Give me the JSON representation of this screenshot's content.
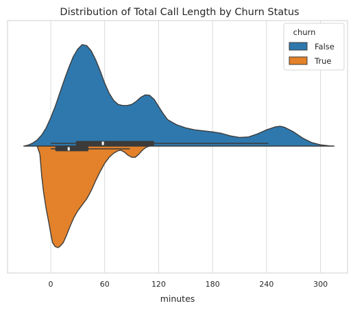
{
  "chart_data": {
    "type": "violin",
    "title": "Distribution of Total Call Length by Churn Status",
    "xlabel": "minutes",
    "ylabel": "",
    "xlim": [
      -48,
      330
    ],
    "xticks": [
      0,
      60,
      120,
      180,
      240,
      300
    ],
    "grid": "vertical",
    "split": true,
    "legend": {
      "title": "churn",
      "placement": "top-right",
      "entries": [
        {
          "label": "False",
          "color": "#2f78ad"
        },
        {
          "label": "True",
          "color": "#e3822a"
        }
      ]
    },
    "series": [
      {
        "name": "False",
        "color": "#2f78ad",
        "side": "upper",
        "density_profile": [
          [
            -30,
            0.0
          ],
          [
            -25,
            0.01
          ],
          [
            -20,
            0.03
          ],
          [
            -15,
            0.06
          ],
          [
            -10,
            0.11
          ],
          [
            -5,
            0.18
          ],
          [
            0,
            0.28
          ],
          [
            5,
            0.39
          ],
          [
            10,
            0.52
          ],
          [
            15,
            0.65
          ],
          [
            20,
            0.77
          ],
          [
            25,
            0.88
          ],
          [
            30,
            0.955
          ],
          [
            35,
            1.0
          ],
          [
            40,
            0.99
          ],
          [
            45,
            0.94
          ],
          [
            50,
            0.85
          ],
          [
            55,
            0.74
          ],
          [
            60,
            0.62
          ],
          [
            65,
            0.52
          ],
          [
            70,
            0.45
          ],
          [
            75,
            0.41
          ],
          [
            80,
            0.4
          ],
          [
            85,
            0.4
          ],
          [
            90,
            0.41
          ],
          [
            95,
            0.44
          ],
          [
            100,
            0.48
          ],
          [
            105,
            0.505
          ],
          [
            110,
            0.5
          ],
          [
            115,
            0.46
          ],
          [
            120,
            0.39
          ],
          [
            125,
            0.32
          ],
          [
            130,
            0.26
          ],
          [
            140,
            0.21
          ],
          [
            150,
            0.18
          ],
          [
            160,
            0.16
          ],
          [
            170,
            0.15
          ],
          [
            180,
            0.14
          ],
          [
            190,
            0.125
          ],
          [
            200,
            0.1
          ],
          [
            210,
            0.085
          ],
          [
            220,
            0.09
          ],
          [
            230,
            0.12
          ],
          [
            240,
            0.16
          ],
          [
            250,
            0.19
          ],
          [
            255,
            0.195
          ],
          [
            260,
            0.185
          ],
          [
            270,
            0.14
          ],
          [
            280,
            0.08
          ],
          [
            290,
            0.035
          ],
          [
            300,
            0.012
          ],
          [
            310,
            0.002
          ],
          [
            315,
            0.0
          ]
        ],
        "box": {
          "q1": 28,
          "median": 58,
          "q3": 115,
          "whisker_low": 0,
          "whisker_high": 242
        }
      },
      {
        "name": "True",
        "color": "#e3822a",
        "side": "lower",
        "density_profile": [
          [
            -15,
            0.0
          ],
          [
            -12,
            0.08
          ],
          [
            -10,
            0.3
          ],
          [
            -8,
            0.45
          ],
          [
            -5,
            0.62
          ],
          [
            -2,
            0.76
          ],
          [
            0,
            0.86
          ],
          [
            2,
            0.95
          ],
          [
            5,
            0.99
          ],
          [
            8,
            1.0
          ],
          [
            10,
            0.99
          ],
          [
            14,
            0.95
          ],
          [
            18,
            0.87
          ],
          [
            22,
            0.78
          ],
          [
            26,
            0.7
          ],
          [
            30,
            0.64
          ],
          [
            35,
            0.58
          ],
          [
            40,
            0.52
          ],
          [
            45,
            0.44
          ],
          [
            50,
            0.34
          ],
          [
            55,
            0.25
          ],
          [
            60,
            0.17
          ],
          [
            65,
            0.11
          ],
          [
            70,
            0.07
          ],
          [
            75,
            0.045
          ],
          [
            78,
            0.04
          ],
          [
            82,
            0.06
          ],
          [
            86,
            0.09
          ],
          [
            90,
            0.11
          ],
          [
            94,
            0.11
          ],
          [
            98,
            0.08
          ],
          [
            102,
            0.04
          ],
          [
            106,
            0.012
          ],
          [
            110,
            0.0
          ]
        ],
        "box": {
          "q1": 5,
          "median": 20,
          "q3": 42,
          "whisker_low": 0,
          "whisker_high": 88
        }
      }
    ]
  }
}
